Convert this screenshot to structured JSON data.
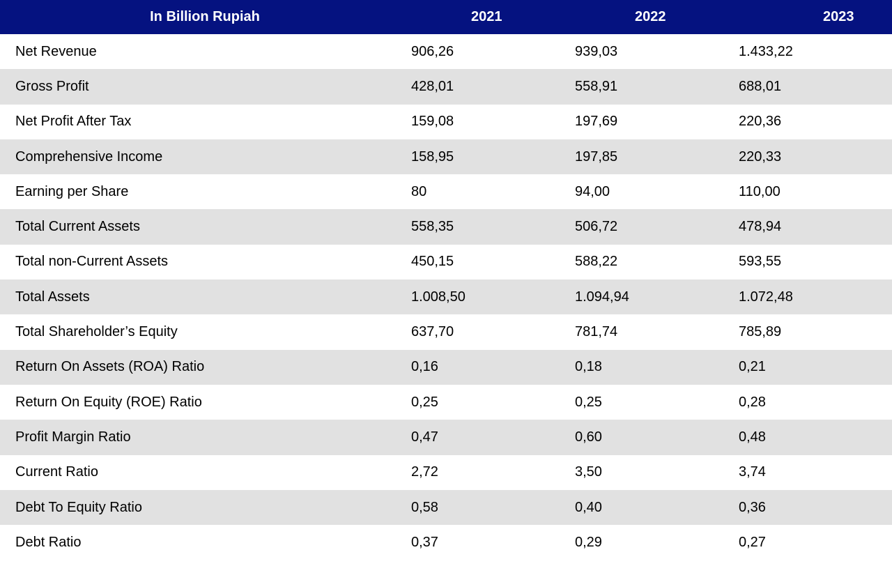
{
  "table": {
    "headers": [
      "In Billion Rupiah",
      "2021",
      "2022",
      "2023"
    ],
    "rows": [
      {
        "label": "Net Revenue",
        "values": [
          "906,26",
          "939,03",
          "1.433,22"
        ]
      },
      {
        "label": "Gross Profit",
        "values": [
          "428,01",
          "558,91",
          "688,01"
        ]
      },
      {
        "label": "Net Profit After Tax",
        "values": [
          "159,08",
          "197,69",
          "220,36"
        ]
      },
      {
        "label": "Comprehensive Income",
        "values": [
          "158,95",
          "197,85",
          "220,33"
        ]
      },
      {
        "label": "Earning per Share",
        "values": [
          "80",
          "94,00",
          "110,00"
        ]
      },
      {
        "label": "Total Current Assets",
        "values": [
          "558,35",
          "506,72",
          "478,94"
        ]
      },
      {
        "label": "Total non-Current Assets",
        "values": [
          "450,15",
          "588,22",
          "593,55"
        ]
      },
      {
        "label": "Total Assets",
        "values": [
          "1.008,50",
          "1.094,94",
          "1.072,48"
        ]
      },
      {
        "label": "Total Shareholder’s Equity",
        "values": [
          "637,70",
          "781,74",
          "785,89"
        ]
      },
      {
        "label": "Return On Assets (ROA) Ratio",
        "values": [
          "0,16",
          "0,18",
          "0,21"
        ]
      },
      {
        "label": "Return On Equity (ROE) Ratio",
        "values": [
          "0,25",
          "0,25",
          "0,28"
        ]
      },
      {
        "label": "Profit Margin Ratio",
        "values": [
          "0,47",
          "0,60",
          "0,48"
        ]
      },
      {
        "label": "Current Ratio",
        "values": [
          "2,72",
          "3,50",
          "3,74"
        ]
      },
      {
        "label": "Debt To Equity Ratio",
        "values": [
          "0,58",
          "0,40",
          "0,36"
        ]
      },
      {
        "label": "Debt Ratio",
        "values": [
          "0,37",
          "0,29",
          "0,27"
        ]
      }
    ]
  },
  "colors": {
    "header_background": "#051280",
    "header_text": "#ffffff",
    "stripe_gray": "#e1e1e1",
    "stripe_white": "#ffffff"
  }
}
